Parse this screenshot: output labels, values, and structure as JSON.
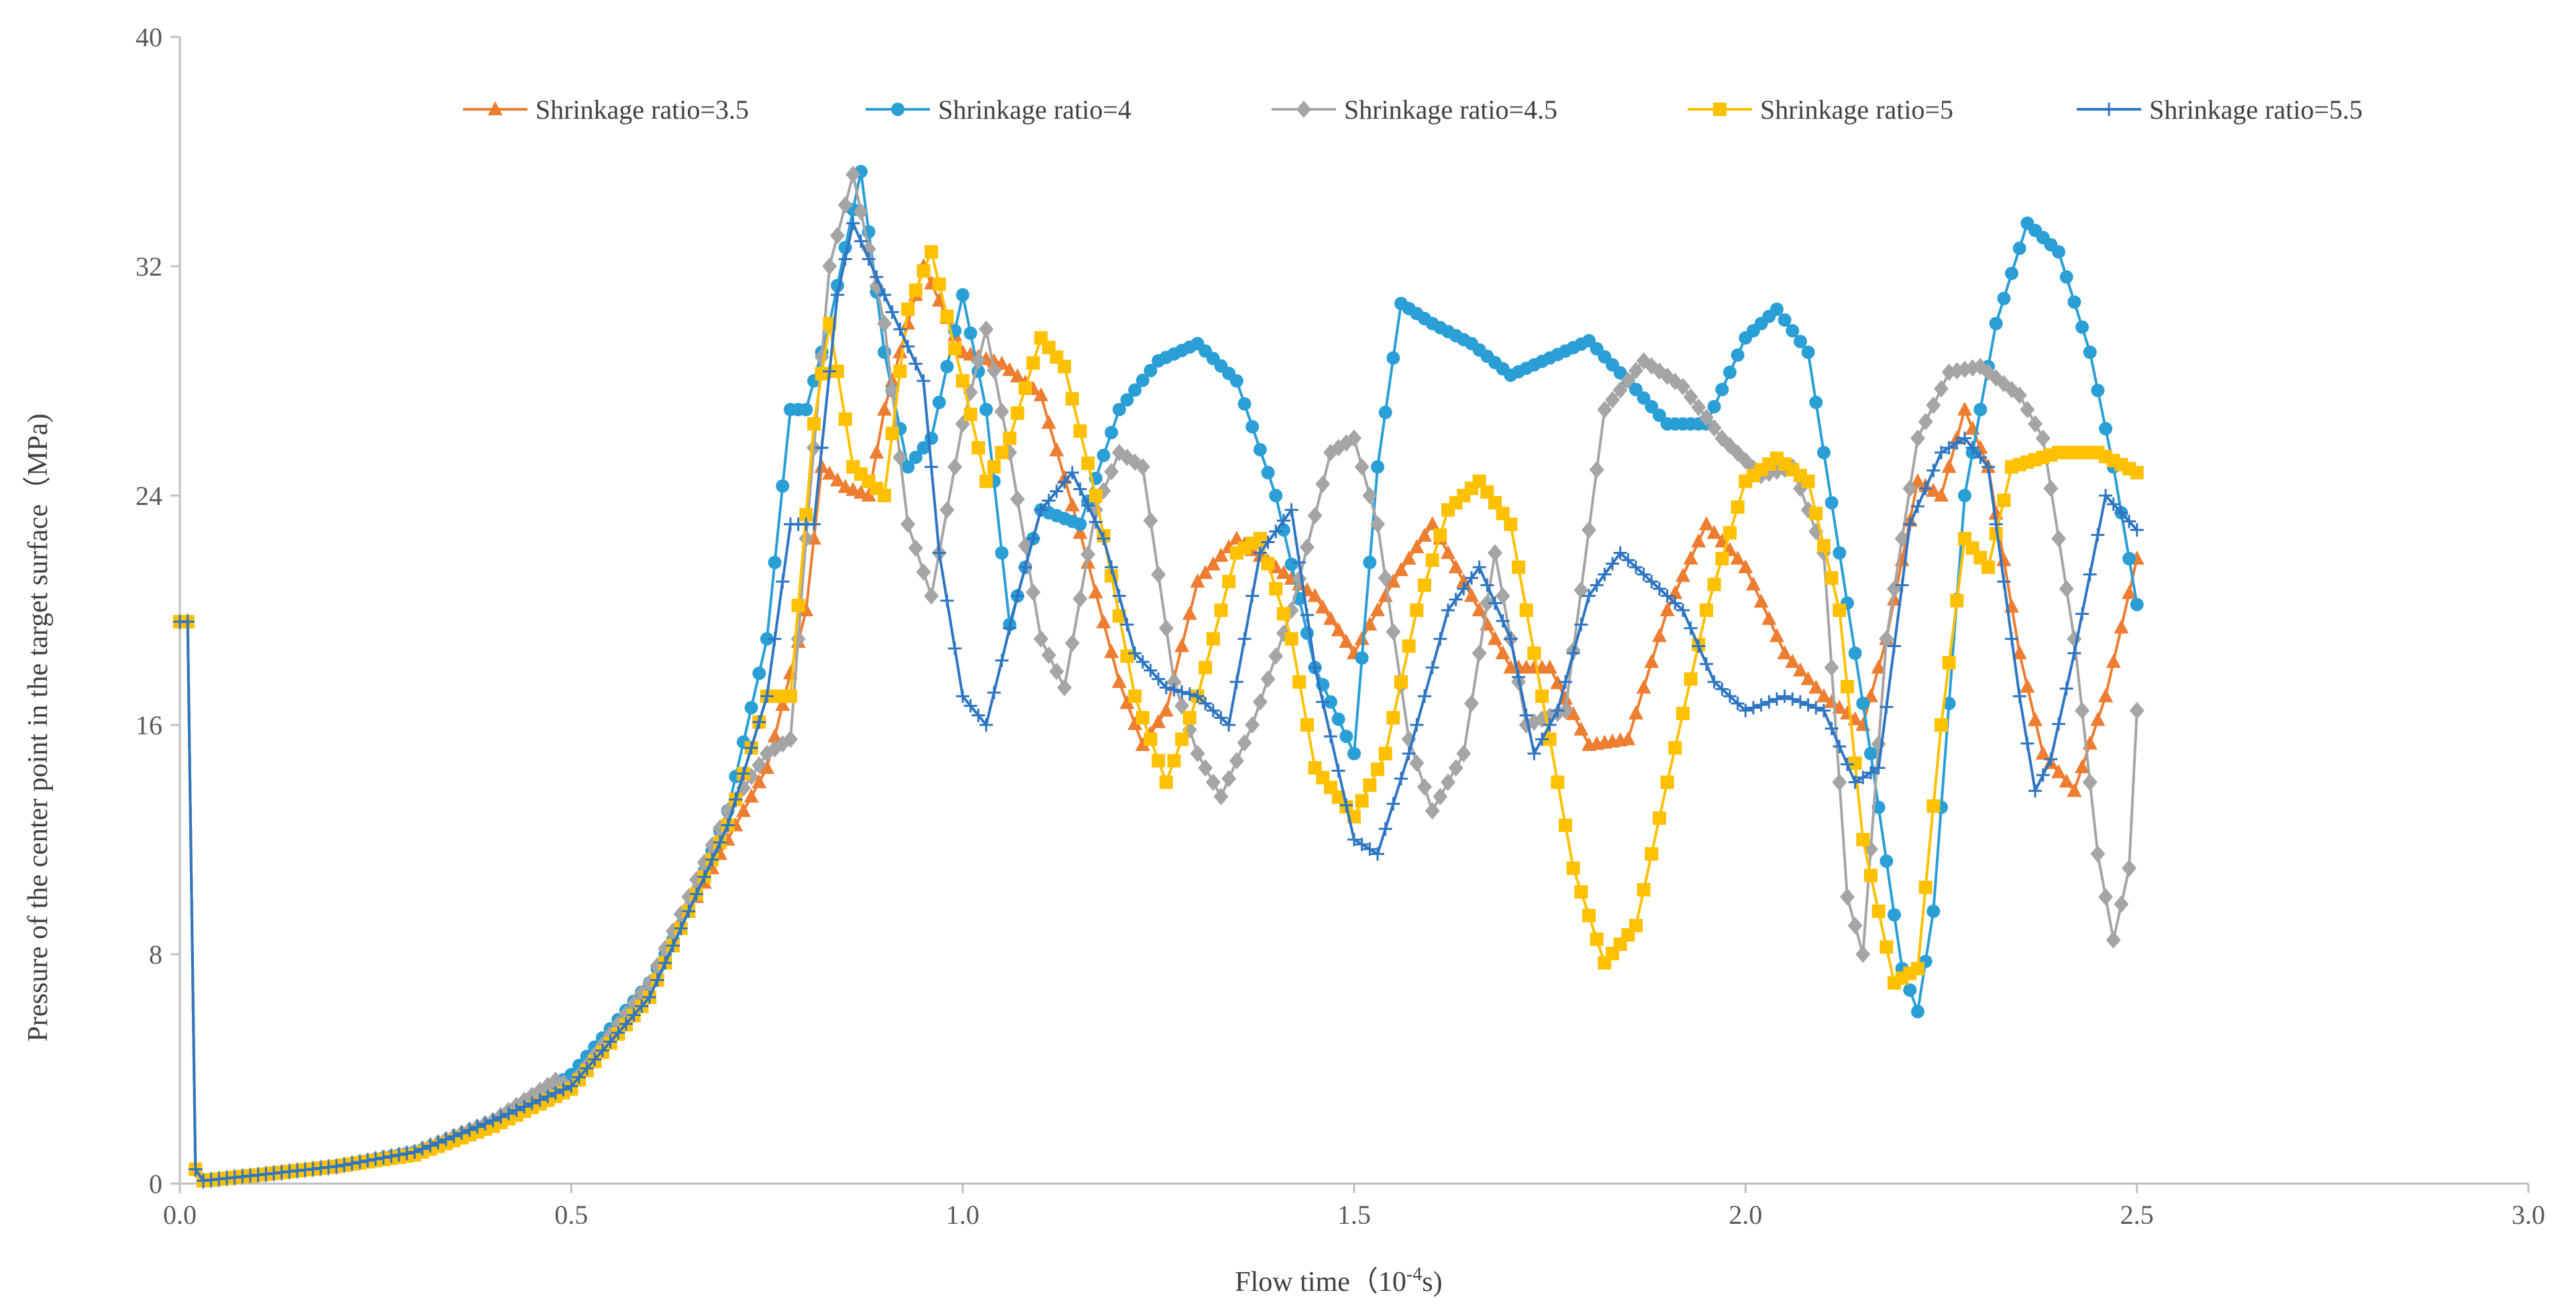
{
  "chart_data": {
    "type": "line",
    "title": "",
    "xlabel": "Flow time",
    "xlabel_unit_prefix": "（10",
    "xlabel_unit_exp": "-4",
    "xlabel_unit_suffix": "s)",
    "ylabel": "Pressure of the center point in the target surface（MPa)",
    "xlim": [
      0,
      3.0
    ],
    "ylim": [
      0,
      40
    ],
    "x_ticks": [
      0.0,
      0.5,
      1.0,
      1.5,
      2.0,
      2.5,
      3.0
    ],
    "x_tick_labels": [
      "0.0",
      "0.5",
      "1.0",
      "1.5",
      "2.0",
      "2.5",
      "3.0"
    ],
    "y_ticks": [
      0,
      8,
      16,
      24,
      32,
      40
    ],
    "y_tick_labels": [
      "0",
      "8",
      "16",
      "24",
      "32",
      "40"
    ],
    "grid": false,
    "legend_position": "top",
    "series": [
      {
        "name": "Shrinkage ratio=3.5",
        "color": "#ED7D31",
        "marker": "triangle",
        "points": [
          [
            0,
            19.6
          ],
          [
            0.01,
            19.6
          ],
          [
            0.02,
            0.5
          ],
          [
            0.03,
            0.1
          ],
          [
            0.1,
            0.3
          ],
          [
            0.2,
            0.6
          ],
          [
            0.3,
            1.1
          ],
          [
            0.4,
            2.0
          ],
          [
            0.5,
            3.4
          ],
          [
            0.6,
            6.5
          ],
          [
            0.65,
            9.5
          ],
          [
            0.7,
            12.0
          ],
          [
            0.75,
            14.5
          ],
          [
            0.8,
            20.0
          ],
          [
            0.82,
            25.0
          ],
          [
            0.85,
            24.3
          ],
          [
            0.88,
            24.0
          ],
          [
            0.9,
            27.0
          ],
          [
            0.95,
            32.0
          ],
          [
            1.0,
            29.0
          ],
          [
            1.05,
            28.6
          ],
          [
            1.1,
            27.5
          ],
          [
            1.15,
            22.7
          ],
          [
            1.2,
            17.5
          ],
          [
            1.23,
            15.3
          ],
          [
            1.26,
            16.5
          ],
          [
            1.3,
            21.0
          ],
          [
            1.35,
            22.5
          ],
          [
            1.4,
            21.5
          ],
          [
            1.45,
            20.5
          ],
          [
            1.5,
            18.5
          ],
          [
            1.55,
            21.0
          ],
          [
            1.6,
            23.0
          ],
          [
            1.65,
            20.5
          ],
          [
            1.7,
            18.0
          ],
          [
            1.75,
            18.0
          ],
          [
            1.8,
            15.3
          ],
          [
            1.85,
            15.5
          ],
          [
            1.9,
            20.0
          ],
          [
            1.95,
            23.0
          ],
          [
            2.0,
            21.5
          ],
          [
            2.05,
            18.5
          ],
          [
            2.1,
            17.0
          ],
          [
            2.15,
            16.0
          ],
          [
            2.18,
            19.0
          ],
          [
            2.22,
            24.5
          ],
          [
            2.25,
            24.0
          ],
          [
            2.28,
            27.0
          ],
          [
            2.31,
            25.0
          ],
          [
            2.35,
            18.5
          ],
          [
            2.38,
            15.0
          ],
          [
            2.42,
            13.7
          ],
          [
            2.46,
            17.0
          ],
          [
            2.5,
            21.8
          ]
        ]
      },
      {
        "name": "Shrinkage ratio=4",
        "color": "#2A9FD6",
        "marker": "circle",
        "points": [
          [
            0,
            19.6
          ],
          [
            0.01,
            19.6
          ],
          [
            0.02,
            0.5
          ],
          [
            0.03,
            0.1
          ],
          [
            0.1,
            0.3
          ],
          [
            0.2,
            0.6
          ],
          [
            0.3,
            1.1
          ],
          [
            0.4,
            2.0
          ],
          [
            0.5,
            3.8
          ],
          [
            0.6,
            7.0
          ],
          [
            0.65,
            9.5
          ],
          [
            0.7,
            13.0
          ],
          [
            0.75,
            19.0
          ],
          [
            0.78,
            27.0
          ],
          [
            0.8,
            27.0
          ],
          [
            0.83,
            30.0
          ],
          [
            0.87,
            35.3
          ],
          [
            0.9,
            29.0
          ],
          [
            0.93,
            25.0
          ],
          [
            0.96,
            26.0
          ],
          [
            1.0,
            31.0
          ],
          [
            1.03,
            27.0
          ],
          [
            1.06,
            19.5
          ],
          [
            1.1,
            23.5
          ],
          [
            1.15,
            23.0
          ],
          [
            1.2,
            27.0
          ],
          [
            1.25,
            28.7
          ],
          [
            1.3,
            29.3
          ],
          [
            1.35,
            28.0
          ],
          [
            1.4,
            24.0
          ],
          [
            1.45,
            18.0
          ],
          [
            1.5,
            15.0
          ],
          [
            1.53,
            25.0
          ],
          [
            1.56,
            30.7
          ],
          [
            1.6,
            30.0
          ],
          [
            1.65,
            29.3
          ],
          [
            1.7,
            28.2
          ],
          [
            1.75,
            28.8
          ],
          [
            1.8,
            29.4
          ],
          [
            1.85,
            28.0
          ],
          [
            1.9,
            26.5
          ],
          [
            1.95,
            26.5
          ],
          [
            2.0,
            29.5
          ],
          [
            2.04,
            30.5
          ],
          [
            2.08,
            29.0
          ],
          [
            2.12,
            22.0
          ],
          [
            2.16,
            15.0
          ],
          [
            2.2,
            7.5
          ],
          [
            2.22,
            6.0
          ],
          [
            2.24,
            9.5
          ],
          [
            2.28,
            24.0
          ],
          [
            2.32,
            30.0
          ],
          [
            2.36,
            33.5
          ],
          [
            2.4,
            32.5
          ],
          [
            2.44,
            29.0
          ],
          [
            2.47,
            25.0
          ],
          [
            2.5,
            20.2
          ]
        ]
      },
      {
        "name": "Shrinkage ratio=4.5",
        "color": "#A5A5A5",
        "marker": "diamond",
        "points": [
          [
            0,
            19.6
          ],
          [
            0.01,
            19.6
          ],
          [
            0.02,
            0.5
          ],
          [
            0.03,
            0.1
          ],
          [
            0.1,
            0.3
          ],
          [
            0.2,
            0.6
          ],
          [
            0.3,
            1.1
          ],
          [
            0.4,
            2.2
          ],
          [
            0.48,
            3.6
          ],
          [
            0.5,
            3.4
          ],
          [
            0.6,
            7.0
          ],
          [
            0.65,
            10.0
          ],
          [
            0.7,
            13.0
          ],
          [
            0.75,
            15.0
          ],
          [
            0.78,
            15.5
          ],
          [
            0.8,
            22.5
          ],
          [
            0.83,
            32.0
          ],
          [
            0.86,
            35.2
          ],
          [
            0.9,
            30.0
          ],
          [
            0.93,
            23.0
          ],
          [
            0.96,
            20.5
          ],
          [
            1.0,
            26.5
          ],
          [
            1.03,
            29.8
          ],
          [
            1.06,
            25.5
          ],
          [
            1.1,
            19.0
          ],
          [
            1.13,
            17.3
          ],
          [
            1.17,
            23.5
          ],
          [
            1.2,
            25.5
          ],
          [
            1.23,
            25.0
          ],
          [
            1.27,
            17.5
          ],
          [
            1.3,
            15.0
          ],
          [
            1.33,
            13.5
          ],
          [
            1.37,
            16.0
          ],
          [
            1.42,
            20.0
          ],
          [
            1.47,
            25.5
          ],
          [
            1.5,
            26.0
          ],
          [
            1.53,
            23.0
          ],
          [
            1.57,
            15.5
          ],
          [
            1.6,
            13.0
          ],
          [
            1.64,
            15.0
          ],
          [
            1.68,
            22.0
          ],
          [
            1.72,
            16.0
          ],
          [
            1.77,
            16.5
          ],
          [
            1.82,
            27.0
          ],
          [
            1.87,
            28.7
          ],
          [
            1.92,
            27.8
          ],
          [
            1.97,
            26.0
          ],
          [
            2.02,
            24.7
          ],
          [
            2.06,
            25.0
          ],
          [
            2.1,
            22.0
          ],
          [
            2.13,
            10.0
          ],
          [
            2.15,
            8.0
          ],
          [
            2.18,
            19.0
          ],
          [
            2.22,
            26.0
          ],
          [
            2.26,
            28.3
          ],
          [
            2.3,
            28.5
          ],
          [
            2.35,
            27.5
          ],
          [
            2.38,
            26.0
          ],
          [
            2.42,
            19.0
          ],
          [
            2.45,
            11.5
          ],
          [
            2.47,
            8.5
          ],
          [
            2.49,
            11.0
          ],
          [
            2.5,
            16.5
          ]
        ]
      },
      {
        "name": "Shrinkage ratio=5",
        "color": "#FFC000",
        "marker": "square",
        "points": [
          [
            0,
            19.6
          ],
          [
            0.01,
            19.6
          ],
          [
            0.02,
            0.5
          ],
          [
            0.03,
            0.1
          ],
          [
            0.1,
            0.3
          ],
          [
            0.2,
            0.6
          ],
          [
            0.3,
            1.0
          ],
          [
            0.4,
            2.0
          ],
          [
            0.5,
            3.3
          ],
          [
            0.6,
            6.5
          ],
          [
            0.65,
            9.5
          ],
          [
            0.7,
            12.5
          ],
          [
            0.75,
            17.0
          ],
          [
            0.78,
            17.0
          ],
          [
            0.81,
            26.5
          ],
          [
            0.83,
            30.0
          ],
          [
            0.86,
            25.0
          ],
          [
            0.9,
            24.0
          ],
          [
            0.93,
            30.5
          ],
          [
            0.96,
            32.5
          ],
          [
            1.0,
            28.0
          ],
          [
            1.03,
            24.5
          ],
          [
            1.06,
            26.0
          ],
          [
            1.1,
            29.5
          ],
          [
            1.13,
            28.5
          ],
          [
            1.17,
            24.0
          ],
          [
            1.22,
            17.0
          ],
          [
            1.26,
            14.0
          ],
          [
            1.3,
            17.0
          ],
          [
            1.35,
            22.0
          ],
          [
            1.38,
            22.5
          ],
          [
            1.42,
            19.0
          ],
          [
            1.45,
            14.5
          ],
          [
            1.5,
            12.8
          ],
          [
            1.54,
            15.0
          ],
          [
            1.58,
            20.0
          ],
          [
            1.62,
            23.5
          ],
          [
            1.66,
            24.5
          ],
          [
            1.7,
            23.0
          ],
          [
            1.74,
            17.0
          ],
          [
            1.78,
            11.0
          ],
          [
            1.82,
            7.7
          ],
          [
            1.86,
            9.0
          ],
          [
            1.9,
            14.0
          ],
          [
            1.95,
            20.0
          ],
          [
            2.0,
            24.5
          ],
          [
            2.04,
            25.3
          ],
          [
            2.08,
            24.5
          ],
          [
            2.12,
            20.0
          ],
          [
            2.15,
            12.0
          ],
          [
            2.19,
            7.0
          ],
          [
            2.22,
            7.5
          ],
          [
            2.25,
            16.0
          ],
          [
            2.28,
            22.5
          ],
          [
            2.31,
            21.5
          ],
          [
            2.34,
            25.0
          ],
          [
            2.4,
            25.5
          ],
          [
            2.45,
            25.5
          ],
          [
            2.5,
            24.8
          ]
        ]
      },
      {
        "name": "Shrinkage ratio=5.5",
        "color": "#2E75C2",
        "marker": "plus",
        "points": [
          [
            0,
            19.6
          ],
          [
            0.01,
            19.6
          ],
          [
            0.02,
            0.5
          ],
          [
            0.03,
            0.1
          ],
          [
            0.1,
            0.3
          ],
          [
            0.2,
            0.6
          ],
          [
            0.3,
            1.1
          ],
          [
            0.4,
            2.2
          ],
          [
            0.5,
            3.4
          ],
          [
            0.6,
            6.5
          ],
          [
            0.65,
            9.5
          ],
          [
            0.7,
            12.5
          ],
          [
            0.75,
            17.0
          ],
          [
            0.78,
            23.0
          ],
          [
            0.81,
            23.0
          ],
          [
            0.84,
            31.0
          ],
          [
            0.86,
            33.5
          ],
          [
            0.9,
            31.0
          ],
          [
            0.95,
            28.0
          ],
          [
            0.97,
            22.0
          ],
          [
            1.0,
            17.0
          ],
          [
            1.03,
            16.0
          ],
          [
            1.07,
            20.5
          ],
          [
            1.1,
            23.5
          ],
          [
            1.14,
            24.8
          ],
          [
            1.18,
            22.5
          ],
          [
            1.22,
            18.5
          ],
          [
            1.26,
            17.3
          ],
          [
            1.3,
            17.0
          ],
          [
            1.34,
            16.0
          ],
          [
            1.38,
            22.0
          ],
          [
            1.42,
            23.5
          ],
          [
            1.45,
            18.0
          ],
          [
            1.5,
            12.0
          ],
          [
            1.53,
            11.5
          ],
          [
            1.57,
            15.0
          ],
          [
            1.62,
            20.0
          ],
          [
            1.66,
            21.5
          ],
          [
            1.7,
            19.0
          ],
          [
            1.73,
            15.0
          ],
          [
            1.76,
            16.5
          ],
          [
            1.8,
            20.5
          ],
          [
            1.84,
            22.0
          ],
          [
            1.88,
            21.0
          ],
          [
            1.92,
            20.0
          ],
          [
            1.96,
            17.5
          ],
          [
            2.0,
            16.5
          ],
          [
            2.05,
            17.0
          ],
          [
            2.1,
            16.5
          ],
          [
            2.14,
            14.0
          ],
          [
            2.17,
            14.5
          ],
          [
            2.21,
            23.0
          ],
          [
            2.25,
            25.5
          ],
          [
            2.28,
            26.0
          ],
          [
            2.31,
            25.0
          ],
          [
            2.35,
            17.0
          ],
          [
            2.37,
            13.7
          ],
          [
            2.39,
            14.8
          ],
          [
            2.42,
            18.5
          ],
          [
            2.46,
            24.0
          ],
          [
            2.5,
            22.8
          ]
        ]
      }
    ]
  }
}
